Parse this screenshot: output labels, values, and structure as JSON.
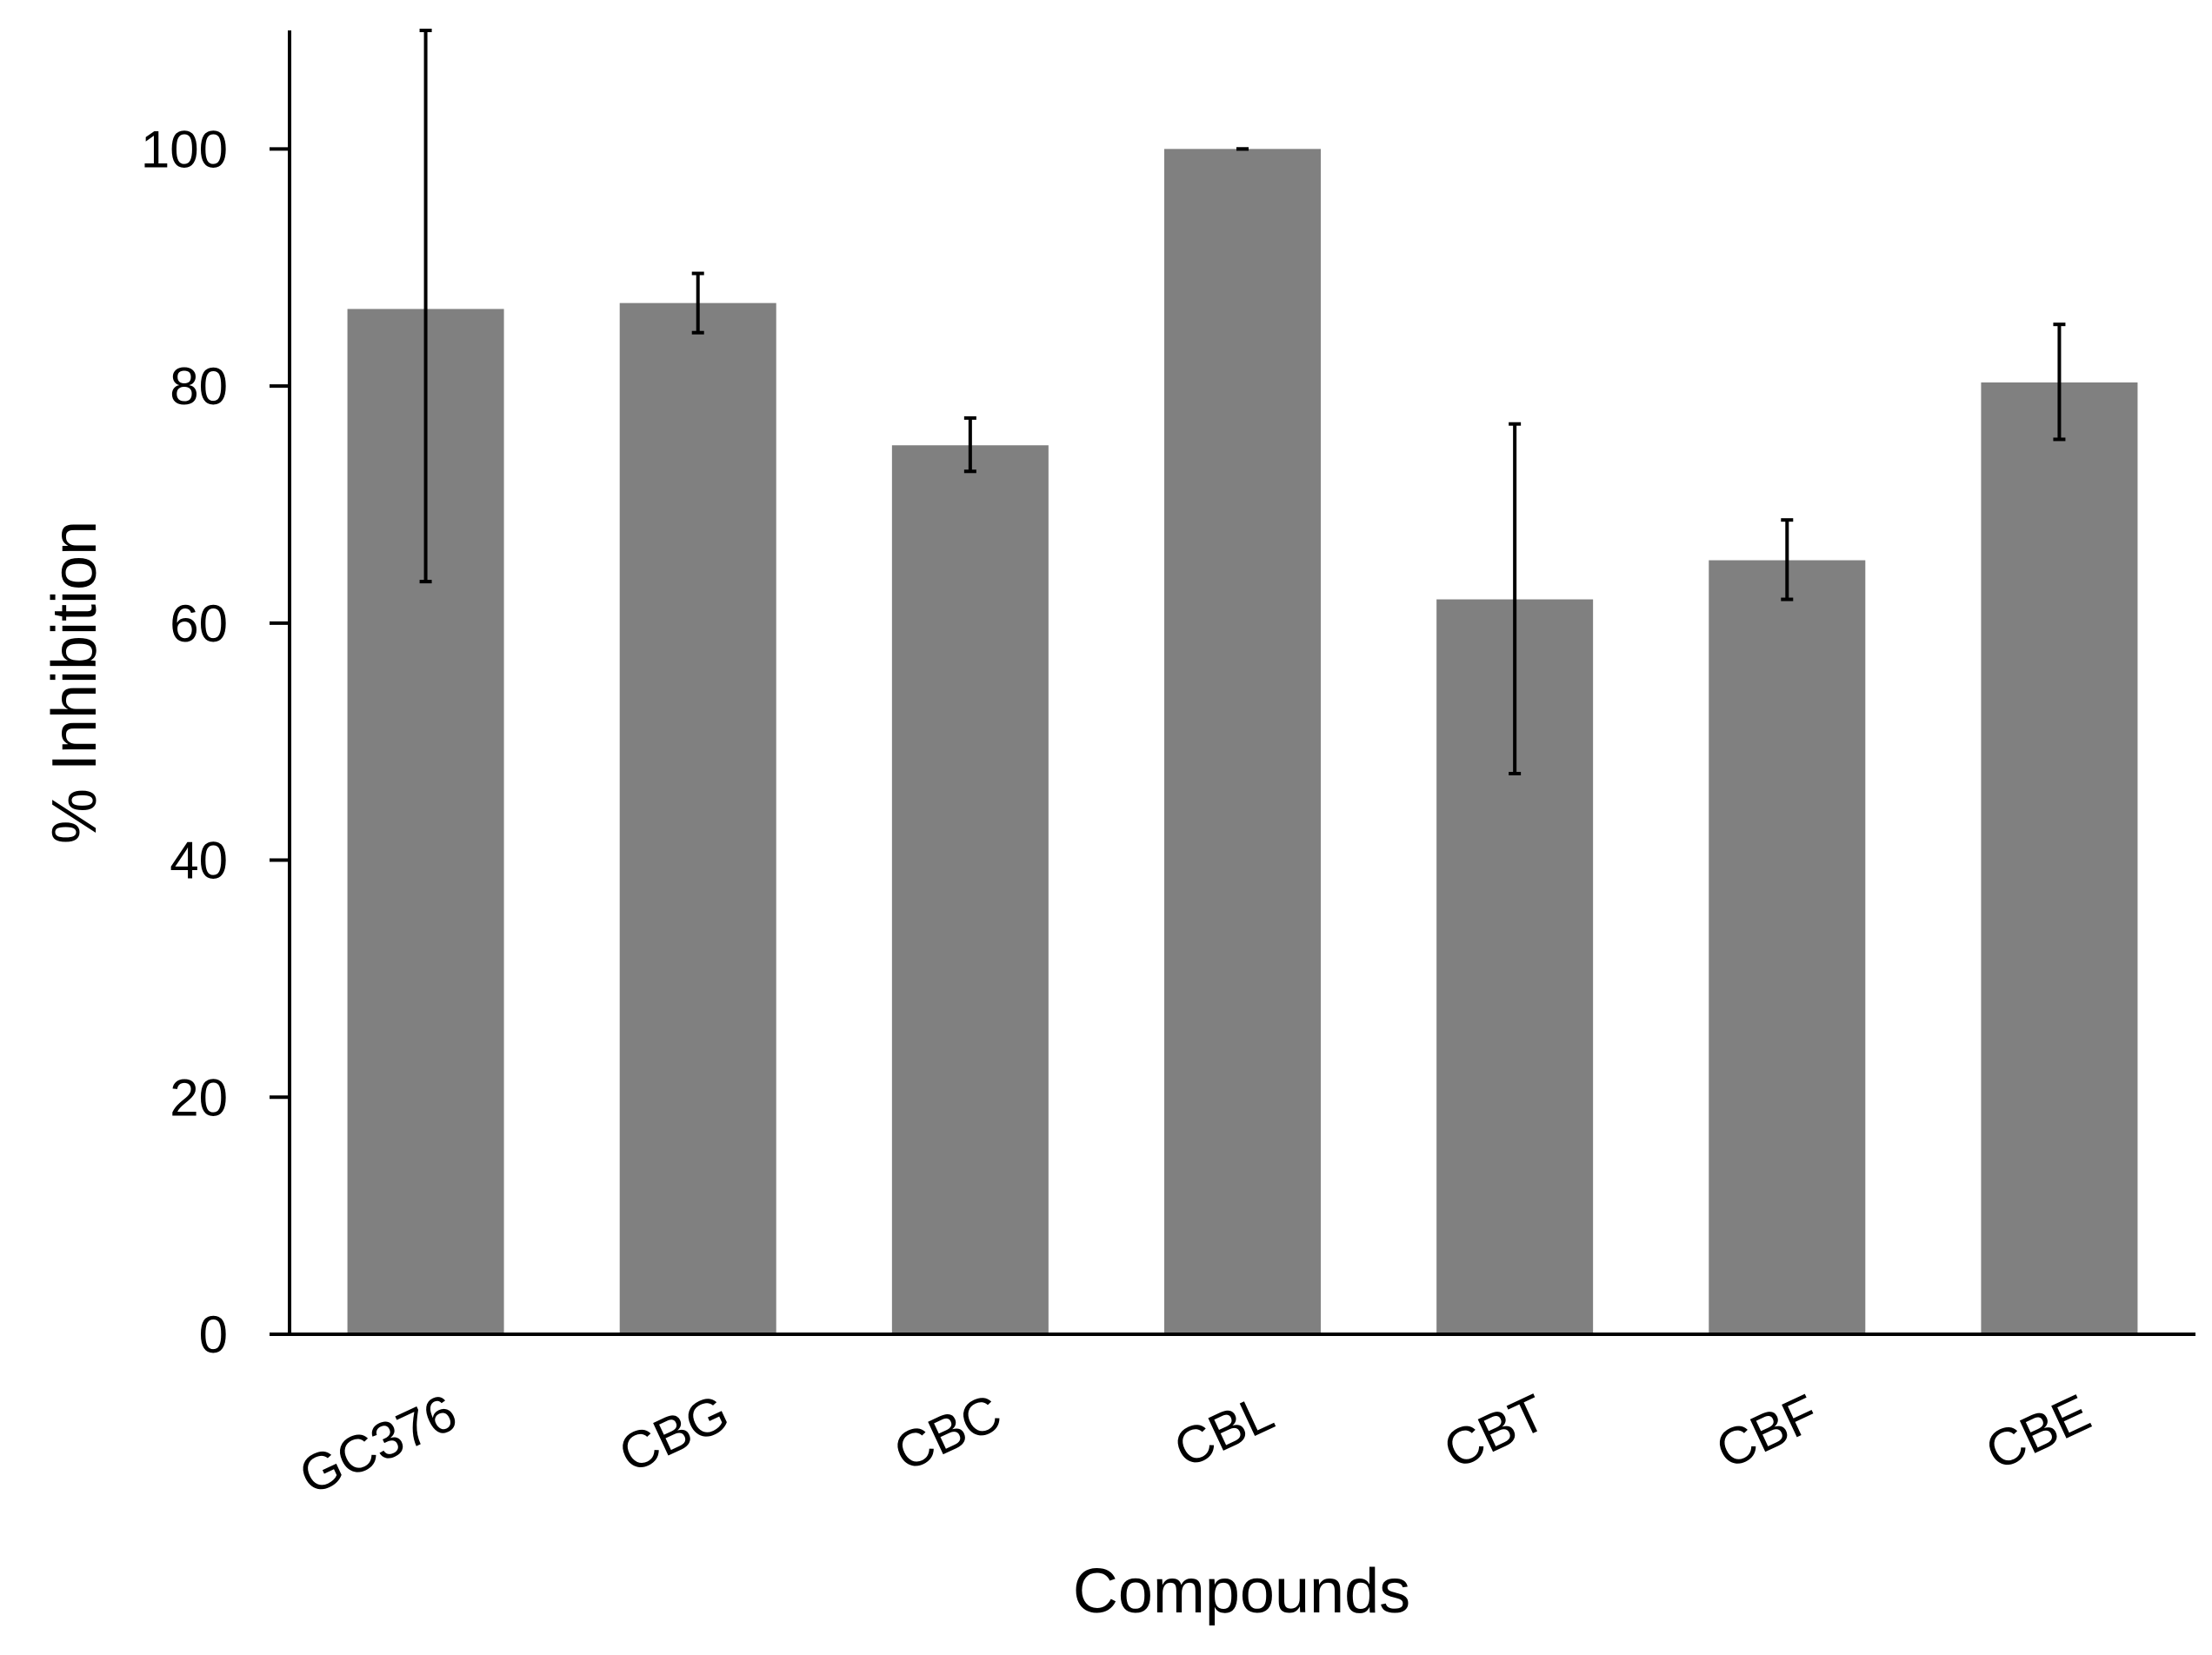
{
  "chart_data": {
    "type": "bar",
    "title": "",
    "xlabel": "Compounds",
    "ylabel": "% Inhibition",
    "categories": [
      "GC376",
      "CBG",
      "CBC",
      "CBL",
      "CBT",
      "CBF",
      "CBE"
    ],
    "values": [
      86.5,
      87.0,
      75.0,
      100.0,
      62.0,
      65.3,
      80.3
    ],
    "error_low": [
      63.5,
      84.5,
      72.8,
      100.0,
      47.3,
      62.0,
      75.5
    ],
    "error_high": [
      110.0,
      89.5,
      77.3,
      100.0,
      76.8,
      68.7,
      85.2
    ],
    "ylim": [
      0,
      110
    ],
    "yticks": [
      0,
      20,
      40,
      60,
      80,
      100
    ],
    "grid": false,
    "legend": "none",
    "colors": {
      "bar": "#808080",
      "axis": "#000000",
      "error_bar": "#000000"
    }
  }
}
